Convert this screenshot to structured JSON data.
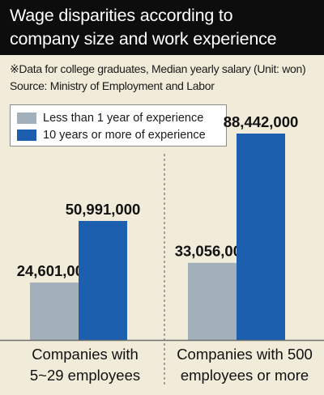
{
  "header": {
    "title_line1": "Wage disparities according to",
    "title_line2": "company size and work experience"
  },
  "notes": {
    "note1": "※Data for college graduates, Median yearly salary  (Unit: won)",
    "note2": "Source: Ministry of Employment and Labor"
  },
  "colors": {
    "less_than_1_year": "#a2b0bb",
    "ten_years_or_more": "#1b5fae",
    "baseline": "#6e6e6e",
    "divider": "#555555"
  },
  "chart_data": {
    "type": "bar",
    "categories": [
      [
        "Companies with",
        "5~29 employees"
      ],
      [
        "Companies with 500",
        "employees or more"
      ]
    ],
    "series": [
      {
        "name": "Less than 1 year of experience",
        "values": [
          24601000,
          33056000
        ],
        "labels": [
          "24,601,000",
          "33,056,000"
        ]
      },
      {
        "name": "10 years or more of experience",
        "values": [
          50991000,
          88442000
        ],
        "labels": [
          "50,991,000",
          "88,442,000"
        ]
      }
    ],
    "unit": "won",
    "ylim": [
      0,
      88442000
    ],
    "grid": false,
    "legend": "top-left"
  }
}
